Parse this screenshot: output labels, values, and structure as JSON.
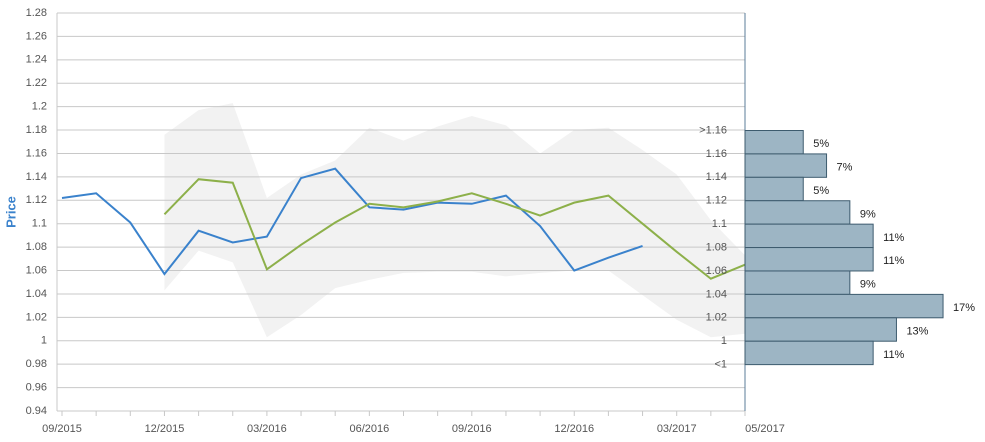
{
  "chart_data": [
    {
      "type": "line",
      "y_label": "Price",
      "categories": [
        "09/2015",
        null,
        null,
        "12/2015",
        null,
        null,
        "03/2016",
        null,
        null,
        "06/2016",
        null,
        null,
        "09/2016",
        null,
        null,
        "12/2016",
        null,
        null,
        "03/2017",
        null,
        "05/2017"
      ],
      "series": [
        {
          "color": "#3a82cc",
          "values": [
            1.122,
            1.126,
            1.101,
            1.057,
            1.094,
            1.084,
            1.089,
            1.139,
            1.147,
            1.114,
            1.112,
            1.118,
            1.117,
            1.124,
            1.098,
            1.06,
            1.071,
            1.081,
            null,
            null,
            null
          ]
        },
        {
          "color": "#8db04a",
          "values": [
            null,
            null,
            null,
            1.108,
            1.138,
            1.135,
            1.061,
            1.082,
            1.101,
            1.117,
            1.114,
            1.119,
            1.126,
            1.117,
            1.107,
            1.118,
            1.124,
            1.1,
            1.076,
            1.053,
            1.065
          ]
        }
      ],
      "band": {
        "color": "#f2f2f2",
        "upper": [
          null,
          null,
          null,
          1.176,
          1.197,
          1.203,
          1.122,
          1.142,
          1.154,
          1.182,
          1.171,
          1.183,
          1.192,
          1.184,
          1.16,
          1.18,
          1.182,
          1.163,
          1.142,
          1.103,
          1.073
        ],
        "lower": [
          null,
          null,
          null,
          1.043,
          1.077,
          1.067,
          1.003,
          1.022,
          1.045,
          1.052,
          1.058,
          1.059,
          1.059,
          1.055,
          1.058,
          1.06,
          1.06,
          1.039,
          1.018,
          1.003,
          1.006
        ]
      },
      "ylim": [
        0.94,
        1.28
      ],
      "yticks": [
        0.94,
        0.96,
        0.98,
        1,
        1.02,
        1.04,
        1.06,
        1.08,
        1.1,
        1.12,
        1.14,
        1.16,
        1.18,
        1.2,
        1.22,
        1.24,
        1.26,
        1.28
      ],
      "grid": true
    },
    {
      "type": "hbar",
      "edge_labels": [
        ">1.16",
        "1.16",
        "1.14",
        "1.12",
        "1.1",
        "1.08",
        "1.06",
        "1.04",
        "1.02",
        "1",
        "<1"
      ],
      "values": [
        5,
        7,
        5,
        9,
        11,
        11,
        9,
        17,
        13,
        11
      ],
      "value_labels": [
        "5%",
        "7%",
        "5%",
        "9%",
        "11%",
        "11%",
        "9%",
        "17%",
        "13%",
        "11%"
      ],
      "color": "#9db5c4",
      "edge_color": "#3d5b6e"
    }
  ]
}
